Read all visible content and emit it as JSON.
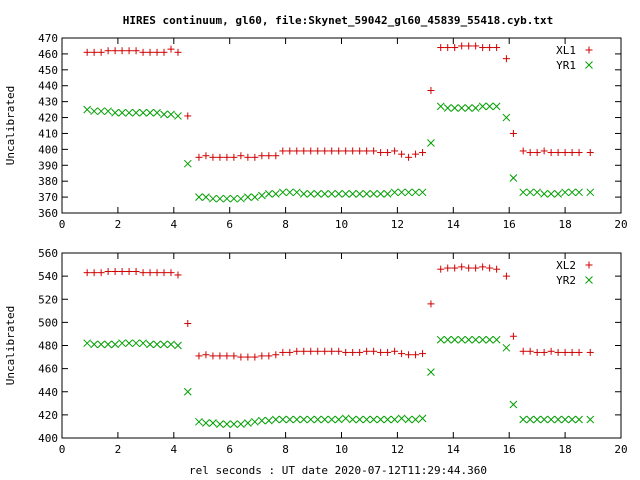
{
  "title": "HIRES continuum, gl60, file:Skynet_59042_gl60_45839_55418.cyb.txt",
  "xlabel": "rel seconds : UT date 2020-07-12T11:29:44.360",
  "colors": {
    "red": "#d00000",
    "green": "#00a000"
  },
  "chart_data": [
    {
      "type": "scatter",
      "ylabel": "Uncalibrated",
      "xlim": [
        0,
        20
      ],
      "ylim": [
        360,
        470
      ],
      "xticks": [
        0,
        2,
        4,
        6,
        8,
        10,
        12,
        14,
        16,
        18,
        20
      ],
      "yticks": [
        360,
        370,
        380,
        390,
        400,
        410,
        420,
        430,
        440,
        450,
        460,
        470
      ],
      "legend_position": "top-right",
      "x": [
        0.9,
        1.15,
        1.4,
        1.65,
        1.9,
        2.15,
        2.4,
        2.65,
        2.9,
        3.15,
        3.4,
        3.65,
        3.9,
        4.15,
        4.5,
        4.9,
        5.15,
        5.4,
        5.65,
        5.9,
        6.15,
        6.4,
        6.65,
        6.9,
        7.15,
        7.4,
        7.65,
        7.9,
        8.15,
        8.4,
        8.65,
        8.9,
        9.15,
        9.4,
        9.65,
        9.9,
        10.15,
        10.4,
        10.65,
        10.9,
        11.15,
        11.4,
        11.65,
        11.9,
        12.15,
        12.4,
        12.65,
        12.9,
        13.2,
        13.55,
        13.8,
        14.05,
        14.3,
        14.55,
        14.8,
        15.05,
        15.3,
        15.55,
        15.9,
        16.15,
        16.5,
        16.75,
        17.0,
        17.25,
        17.5,
        17.75,
        18.0,
        18.25,
        18.5,
        18.9
      ],
      "series": [
        {
          "name": "XL1",
          "marker": "plus",
          "color": "#d00000",
          "values": [
            461,
            461,
            461,
            462,
            462,
            462,
            462,
            462,
            461,
            461,
            461,
            461,
            463,
            461,
            421,
            395,
            396,
            395,
            395,
            395,
            395,
            396,
            395,
            395,
            396,
            396,
            396,
            399,
            399,
            399,
            399,
            399,
            399,
            399,
            399,
            399,
            399,
            399,
            399,
            399,
            399,
            398,
            398,
            399,
            397,
            395,
            397,
            398,
            437,
            464,
            464,
            464,
            465,
            465,
            465,
            464,
            464,
            464,
            457,
            410,
            399,
            398,
            398,
            399,
            398,
            398,
            398,
            398,
            398,
            398
          ]
        },
        {
          "name": "YR1",
          "marker": "cross",
          "color": "#00a000",
          "values": [
            425,
            424,
            424,
            424,
            423,
            423,
            423,
            423,
            423,
            423,
            423,
            422,
            422,
            421,
            391,
            370,
            370,
            369,
            369,
            369,
            369,
            369,
            370,
            370,
            371,
            372,
            372,
            373,
            373,
            373,
            372,
            372,
            372,
            372,
            372,
            372,
            372,
            372,
            372,
            372,
            372,
            372,
            372,
            373,
            373,
            373,
            373,
            373,
            404,
            427,
            426,
            426,
            426,
            426,
            426,
            427,
            427,
            427,
            420,
            382,
            373,
            373,
            373,
            372,
            372,
            372,
            373,
            373,
            373,
            373
          ]
        }
      ]
    },
    {
      "type": "scatter",
      "ylabel": "Uncalibrated",
      "xlim": [
        0,
        20
      ],
      "ylim": [
        400,
        560
      ],
      "xticks": [
        0,
        2,
        4,
        6,
        8,
        10,
        12,
        14,
        16,
        18,
        20
      ],
      "yticks": [
        400,
        420,
        440,
        460,
        480,
        500,
        520,
        540,
        560
      ],
      "legend_position": "top-right",
      "x": [
        0.9,
        1.15,
        1.4,
        1.65,
        1.9,
        2.15,
        2.4,
        2.65,
        2.9,
        3.15,
        3.4,
        3.65,
        3.9,
        4.15,
        4.5,
        4.9,
        5.15,
        5.4,
        5.65,
        5.9,
        6.15,
        6.4,
        6.65,
        6.9,
        7.15,
        7.4,
        7.65,
        7.9,
        8.15,
        8.4,
        8.65,
        8.9,
        9.15,
        9.4,
        9.65,
        9.9,
        10.15,
        10.4,
        10.65,
        10.9,
        11.15,
        11.4,
        11.65,
        11.9,
        12.15,
        12.4,
        12.65,
        12.9,
        13.2,
        13.55,
        13.8,
        14.05,
        14.3,
        14.55,
        14.8,
        15.05,
        15.3,
        15.55,
        15.9,
        16.15,
        16.5,
        16.75,
        17.0,
        17.25,
        17.5,
        17.75,
        18.0,
        18.25,
        18.5,
        18.9
      ],
      "series": [
        {
          "name": "XL2",
          "marker": "plus",
          "color": "#d00000",
          "values": [
            543,
            543,
            543,
            544,
            544,
            544,
            544,
            544,
            543,
            543,
            543,
            543,
            543,
            541,
            499,
            471,
            472,
            471,
            471,
            471,
            471,
            470,
            470,
            470,
            471,
            471,
            472,
            474,
            474,
            475,
            475,
            475,
            475,
            475,
            475,
            475,
            474,
            474,
            474,
            475,
            475,
            474,
            474,
            475,
            473,
            472,
            472,
            473,
            516,
            546,
            547,
            547,
            548,
            547,
            547,
            548,
            547,
            546,
            540,
            488,
            475,
            475,
            474,
            474,
            475,
            474,
            474,
            474,
            474,
            474
          ]
        },
        {
          "name": "YR2",
          "marker": "cross",
          "color": "#00a000",
          "values": [
            482,
            481,
            481,
            481,
            481,
            482,
            482,
            482,
            482,
            481,
            481,
            481,
            481,
            480,
            440,
            414,
            413,
            413,
            412,
            412,
            412,
            412,
            413,
            414,
            415,
            415,
            416,
            416,
            416,
            416,
            416,
            416,
            416,
            416,
            416,
            416,
            417,
            416,
            416,
            416,
            416,
            416,
            416,
            416,
            417,
            416,
            416,
            417,
            457,
            485,
            485,
            485,
            485,
            485,
            485,
            485,
            485,
            485,
            478,
            429,
            416,
            416,
            416,
            416,
            416,
            416,
            416,
            416,
            416,
            416
          ]
        }
      ]
    }
  ]
}
